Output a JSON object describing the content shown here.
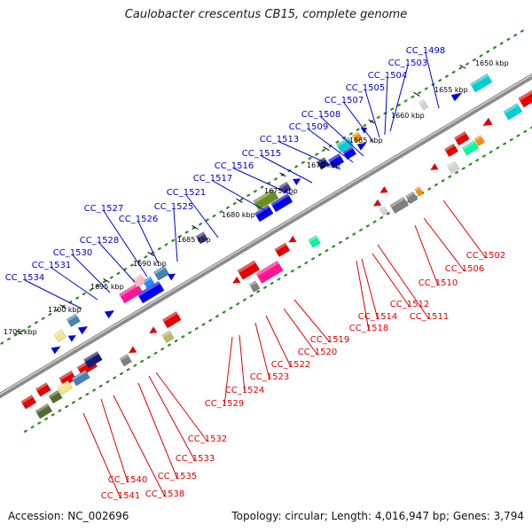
{
  "header": {
    "title": "Caulobacter crescentus CB15, complete genome"
  },
  "footer": {
    "accession": "Accession: NC_002696",
    "summary": "Topology: circular; Length: 4,016,947 bp; Genes: 3,794"
  },
  "map": {
    "backbone_color": "#8c8c8c",
    "forward_label_color": "#0000cc",
    "reverse_label_color": "#dd0000",
    "ruler_color": "#2e8b22",
    "ticks": [
      "1650 kbp",
      "1655 kbp",
      "1660 kbp",
      "1665 kbp",
      "1670 kbp",
      "1675 kbp",
      "1680 kbp",
      "1685 kbp",
      "1690 kbp",
      "1695 kbp",
      "1700 kbp",
      "1705 kbp"
    ],
    "forward_genes": [
      "CC_1498",
      "CC_1503",
      "CC_1504",
      "CC_1505",
      "CC_1507",
      "CC_1508",
      "CC_1509",
      "CC_1513",
      "CC_1515",
      "CC_1516",
      "CC_1517",
      "CC_1521",
      "CC_1525",
      "CC_1526",
      "CC_1527",
      "CC_1528",
      "CC_1530",
      "CC_1531",
      "CC_1534"
    ],
    "reverse_genes": [
      "CC_1502",
      "CC_1506",
      "CC_1510",
      "CC_1511",
      "CC_1512",
      "CC_1514",
      "CC_1518",
      "CC_1519",
      "CC_1520",
      "CC_1522",
      "CC_1523",
      "CC_1524",
      "CC_1529",
      "CC_1532",
      "CC_1533",
      "CC_1535",
      "CC_1538",
      "CC_1540",
      "CC_1541"
    ],
    "feature_colors": [
      "#e60000",
      "#ff1493",
      "#0000ee",
      "#1e90ff",
      "#4682b4",
      "#556b2f",
      "#6b8e23",
      "#808080",
      "#bdb76b",
      "#00ced1",
      "#00fa9a",
      "#ff8c00",
      "#ffb6c1",
      "#191970",
      "#483d8b",
      "#f0e68c",
      "#d3d3d3"
    ]
  }
}
